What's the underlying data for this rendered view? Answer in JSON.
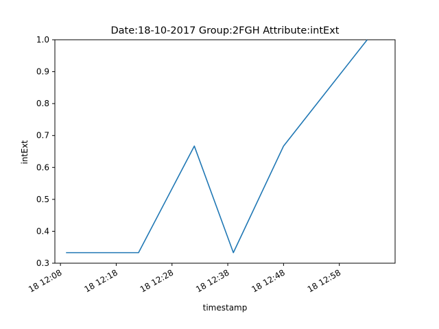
{
  "chart_data": {
    "type": "line",
    "title": "Date:18-10-2017  Group:2FGH Attribute:intExt",
    "xlabel": "timestamp",
    "ylabel": "intExt",
    "x_tick_labels": [
      "18 12:08",
      "18 12:18",
      "18 12:28",
      "18 12:38",
      "18 12:48",
      "18 12:58"
    ],
    "y_tick_labels": [
      "0.3",
      "0.4",
      "0.5",
      "0.6",
      "0.7",
      "0.8",
      "0.9",
      "1.0"
    ],
    "x_ticks": [
      "2017-10-18 12:08",
      "2017-10-18 12:18",
      "2017-10-18 12:28",
      "2017-10-18 12:38",
      "2017-10-18 12:48",
      "2017-10-18 12:58"
    ],
    "y_ticks": [
      0.3,
      0.4,
      0.5,
      0.6,
      0.7,
      0.8,
      0.9,
      1.0
    ],
    "xlim": [
      "2017-10-18 12:07",
      "2017-10-18 13:08"
    ],
    "ylim": [
      0.3,
      1.0
    ],
    "grid": false,
    "series": [
      {
        "color": "#1f77b4",
        "points": [
          {
            "x": "2017-10-18 12:09",
            "y": 0.333
          },
          {
            "x": "2017-10-18 12:22",
            "y": 0.333
          },
          {
            "x": "2017-10-18 12:32",
            "y": 0.667
          },
          {
            "x": "2017-10-18 12:39",
            "y": 0.333
          },
          {
            "x": "2017-10-18 12:48",
            "y": 0.667
          },
          {
            "x": "2017-10-18 13:03",
            "y": 1.0
          }
        ]
      }
    ]
  }
}
